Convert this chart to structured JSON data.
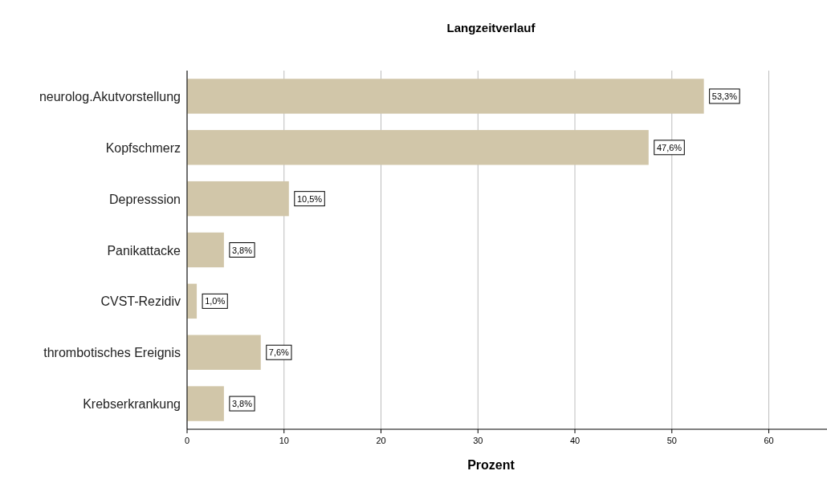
{
  "chart_data": {
    "type": "bar",
    "orientation": "horizontal",
    "title": "Langzeitverlauf",
    "xlabel": "Prozent",
    "categories": [
      "neurolog.Akutvorstellung",
      "Kopfschmerz",
      "Depresssion",
      "Panikattacke",
      "CVST-Rezidiv",
      "thrombotisches Ereignis",
      "Krebserkrankung"
    ],
    "values": [
      53.3,
      47.6,
      10.5,
      3.8,
      1.0,
      7.6,
      3.8
    ],
    "value_labels": [
      "53,3%",
      "47,6%",
      "10,5%",
      "3,8%",
      "1,0%",
      "7,6%",
      "3,8%"
    ],
    "color": "#d1c6a9",
    "xlim": [
      0,
      66
    ],
    "xticks": [
      0,
      10,
      20,
      30,
      40,
      50,
      60
    ],
    "grid": "x"
  }
}
